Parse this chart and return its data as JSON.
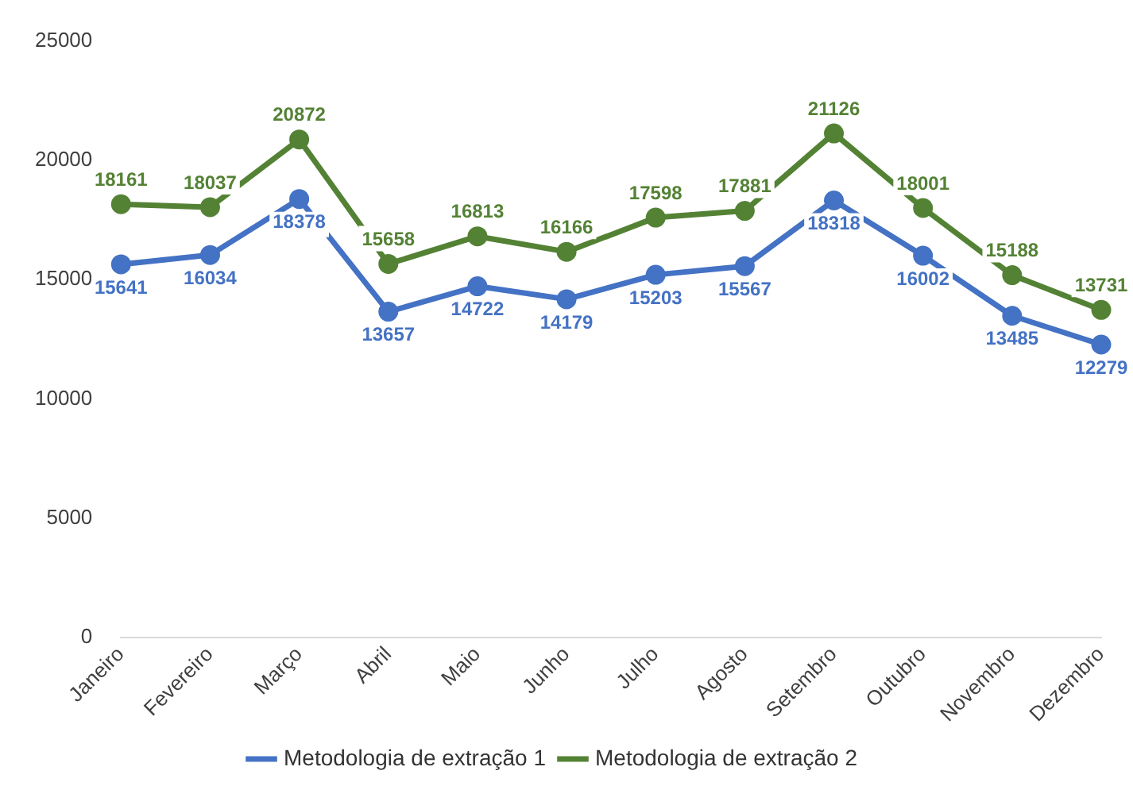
{
  "chart_data": {
    "type": "line",
    "categories": [
      "Janeiro",
      "Fevereiro",
      "Março",
      "Abril",
      "Maio",
      "Junho",
      "Julho",
      "Agosto",
      "Setembro",
      "Outubro",
      "Novembro",
      "Dezembro"
    ],
    "series": [
      {
        "name": "Metodologia de extração 1",
        "color": "#4472c4",
        "values": [
          15641,
          16034,
          18378,
          13657,
          14722,
          14179,
          15203,
          15567,
          18318,
          16002,
          13485,
          12279
        ]
      },
      {
        "name": "Metodologia de extração 2",
        "color": "#548235",
        "values": [
          18161,
          18037,
          20872,
          15658,
          16813,
          16166,
          17598,
          17881,
          21126,
          18001,
          15188,
          13731
        ]
      }
    ],
    "ylim": [
      0,
      25000
    ],
    "yticks": [
      0,
      5000,
      10000,
      15000,
      20000,
      25000
    ],
    "grid": false,
    "legend": "bottom",
    "marker": "circle",
    "line_style": "solid",
    "data_labels": true
  }
}
